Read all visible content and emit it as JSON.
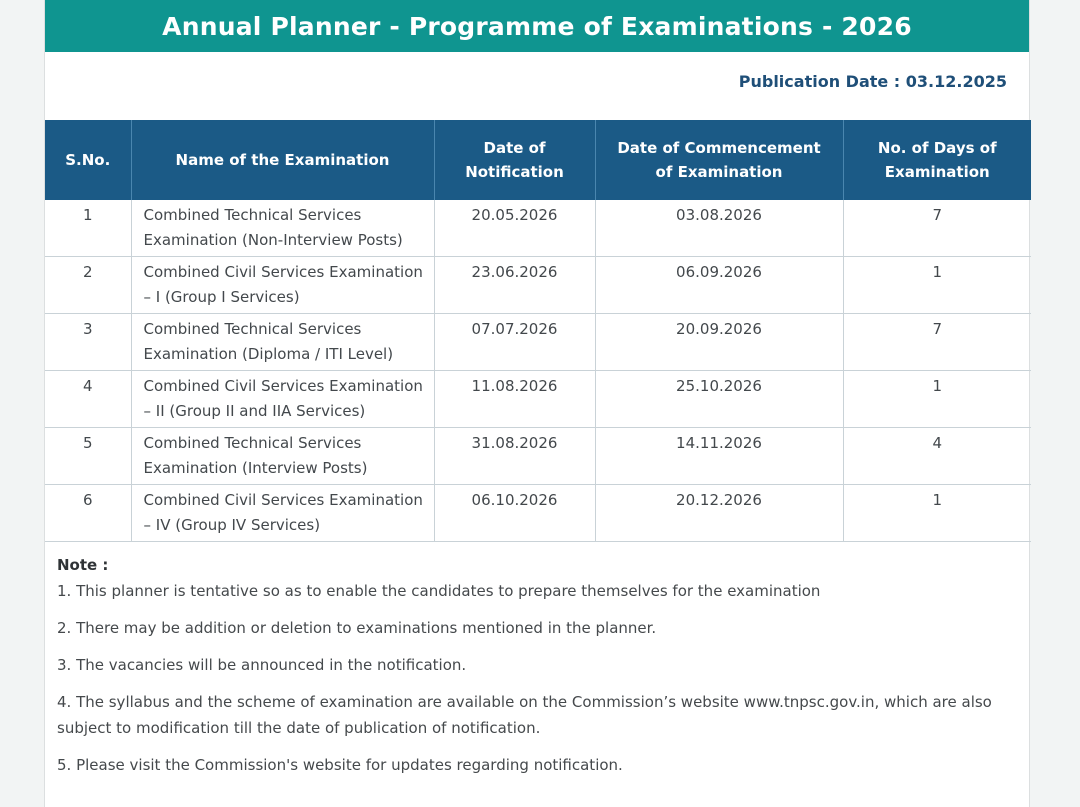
{
  "title": "Annual Planner - Programme of Examinations - 2026",
  "publication_date": "Publication Date : 03.12.2025",
  "table": {
    "headers": {
      "sno": "S.No.",
      "name": "Name of the Examination",
      "notification_l1": "Date of",
      "notification_l2": "Notification",
      "commencement_l1": "Date of Commencement",
      "commencement_l2": "of Examination",
      "days_l1": "No. of Days of",
      "days_l2": "Examination"
    },
    "rows": [
      {
        "sno": "1",
        "name": "Combined Technical Services Examination (Non-Interview Posts)",
        "notification": "20.05.2026",
        "commencement": "03.08.2026",
        "days": "7"
      },
      {
        "sno": "2",
        "name": "Combined Civil Services Examination – I (Group I Services)",
        "notification": "23.06.2026",
        "commencement": "06.09.2026",
        "days": "1"
      },
      {
        "sno": "3",
        "name": "Combined Technical Services Examination (Diploma / ITI Level)",
        "notification": "07.07.2026",
        "commencement": "20.09.2026",
        "days": "7"
      },
      {
        "sno": "4",
        "name": "Combined Civil Services Examination – II (Group II and IIA Services)",
        "notification": "11.08.2026",
        "commencement": "25.10.2026",
        "days": "1"
      },
      {
        "sno": "5",
        "name": "Combined Technical Services Examination (Interview Posts)",
        "notification": "31.08.2026",
        "commencement": "14.11.2026",
        "days": "4"
      },
      {
        "sno": "6",
        "name": "Combined Civil Services Examination – IV (Group IV Services)",
        "notification": "06.10.2026",
        "commencement": "20.12.2026",
        "days": "1"
      }
    ]
  },
  "notes": {
    "label": "Note :",
    "items": [
      "1. This planner is tentative so as to enable the candidates to prepare themselves for the examination",
      "2. There may be addition or deletion to examinations mentioned in the planner.",
      "3. The vacancies will be announced in the notification.",
      "4. The syllabus and the scheme of examination are available on the Commission’s website www.tnpsc.gov.in, which are also subject to modification till the date of publication of notification.",
      "5. Please visit the Commission's website for updates regarding notification."
    ]
  }
}
